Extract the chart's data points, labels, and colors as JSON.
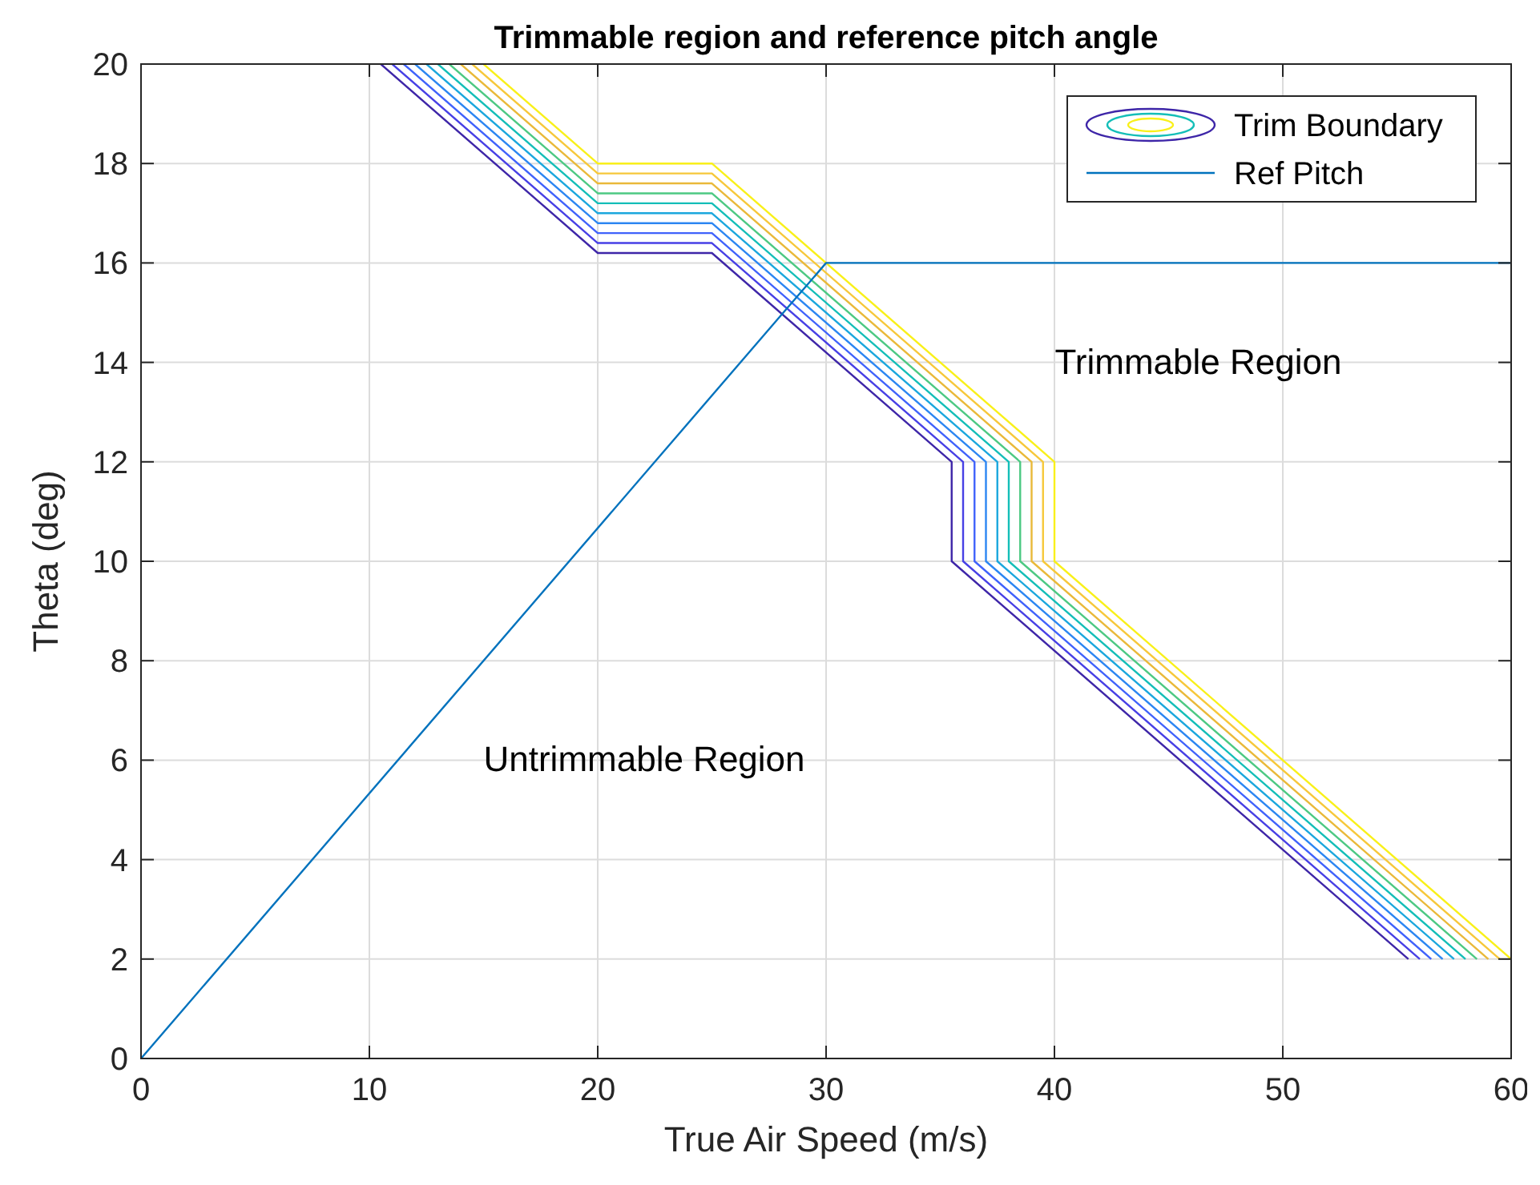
{
  "chart_data": {
    "type": "line",
    "title": "Trimmable region and reference pitch angle",
    "xlabel": "True Air Speed (m/s)",
    "ylabel": "Theta (deg)",
    "xlim": [
      0,
      60
    ],
    "ylim": [
      0,
      20
    ],
    "xticks": [
      0,
      10,
      20,
      30,
      40,
      50,
      60
    ],
    "yticks": [
      0,
      2,
      4,
      6,
      8,
      10,
      12,
      14,
      16,
      18,
      20
    ],
    "grid": true,
    "legend": "top right",
    "line_style": "solid",
    "marker": "none",
    "annotations": [
      "Trimmable Region",
      "Untrimmable Region"
    ],
    "series": [
      {
        "name": "Trim Boundary",
        "color": "#3e26a8",
        "x": [
          10.5,
          20,
          25,
          35.5,
          35.5,
          55.5
        ],
        "values": [
          20,
          16.2,
          16.2,
          12,
          10,
          2
        ]
      },
      {
        "color": "#4740e5",
        "x": [
          11,
          20,
          25,
          36,
          36,
          56
        ],
        "values": [
          20,
          16.4,
          16.4,
          12,
          10,
          2
        ]
      },
      {
        "color": "#4062fb",
        "x": [
          11.5,
          20,
          25,
          36.5,
          36.5,
          56.5
        ],
        "values": [
          20,
          16.6,
          16.6,
          12,
          10,
          2
        ]
      },
      {
        "color": "#2c86f2",
        "x": [
          12,
          20,
          25,
          37,
          37,
          57
        ],
        "values": [
          20,
          16.8,
          16.8,
          12,
          10,
          2
        ]
      },
      {
        "color": "#1ba7dd",
        "x": [
          12.5,
          20,
          25,
          37.5,
          37.5,
          57.5
        ],
        "values": [
          20,
          17,
          17,
          12,
          10,
          2
        ]
      },
      {
        "color": "#14beb8",
        "x": [
          13,
          20,
          25,
          38,
          38,
          58
        ],
        "values": [
          20,
          17.2,
          17.2,
          12,
          10,
          2
        ]
      },
      {
        "color": "#4dc983",
        "x": [
          13.5,
          20,
          25,
          38.5,
          38.5,
          58.5
        ],
        "values": [
          20,
          17.4,
          17.4,
          12,
          10,
          2
        ]
      },
      {
        "color": "#e9b939",
        "x": [
          14,
          20,
          25,
          39,
          39,
          59
        ],
        "values": [
          20,
          17.6,
          17.6,
          12,
          10,
          2
        ]
      },
      {
        "color": "#f6c83a",
        "x": [
          14.5,
          20,
          25,
          39.5,
          39.5,
          59.5
        ],
        "values": [
          20,
          17.8,
          17.8,
          12,
          10,
          2
        ]
      },
      {
        "color": "#f9f01a",
        "x": [
          15,
          20,
          25,
          40,
          40,
          60
        ],
        "values": [
          20,
          18,
          18,
          12,
          10,
          2
        ]
      },
      {
        "name": "Ref Pitch",
        "color": "#0072bd",
        "x": [
          0,
          30,
          60
        ],
        "values": [
          0,
          16,
          16
        ]
      }
    ]
  }
}
